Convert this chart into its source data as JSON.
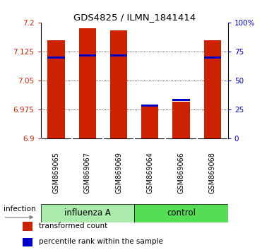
{
  "title": "GDS4825 / ILMN_1841414",
  "samples": [
    "GSM869065",
    "GSM869067",
    "GSM869069",
    "GSM869064",
    "GSM869066",
    "GSM869068"
  ],
  "group_labels": [
    "influenza A",
    "control"
  ],
  "red_values": [
    7.155,
    7.185,
    7.18,
    6.985,
    6.995,
    7.155
  ],
  "blue_values": [
    7.11,
    7.115,
    7.115,
    6.985,
    7.0,
    7.11
  ],
  "ymin": 6.9,
  "ymax": 7.2,
  "yticks": [
    6.9,
    6.975,
    7.05,
    7.125,
    7.2
  ],
  "ytick_labels": [
    "6.9",
    "6.975",
    "7.05",
    "7.125",
    "7.2"
  ],
  "right_yticks": [
    0,
    25,
    50,
    75,
    100
  ],
  "right_ytick_labels": [
    "0",
    "25",
    "50",
    "75",
    "100%"
  ],
  "left_color": "#cc2200",
  "right_color": "#0000cc",
  "bar_color": "#cc2200",
  "dot_color": "#0000cc",
  "bar_width": 0.55,
  "infection_label": "infection",
  "legend_red": "transformed count",
  "legend_blue": "percentile rank within the sample",
  "tick_area_color": "#c8c8c8",
  "group_influenza_color": "#aaeaaa",
  "group_control_color": "#55dd55",
  "n_influenza": 3,
  "n_control": 3
}
